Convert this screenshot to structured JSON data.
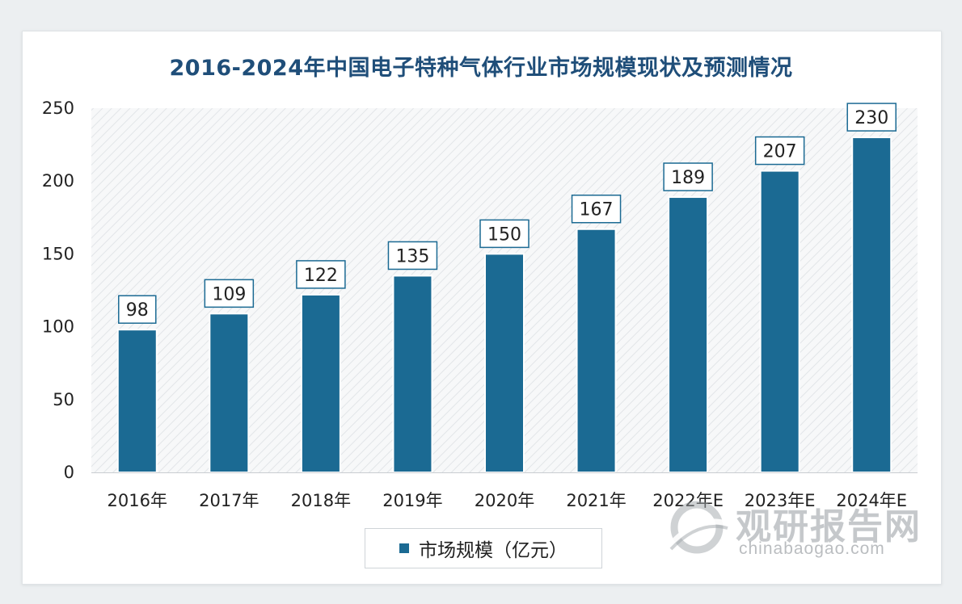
{
  "chart_data": {
    "type": "bar",
    "title": "2016-2024年中国电子特种气体行业市场规模现状及预测情况",
    "categories": [
      "2016年",
      "2017年",
      "2018年",
      "2019年",
      "2020年",
      "2021年",
      "2022年E",
      "2023年E",
      "2024年E"
    ],
    "series": [
      {
        "name": "市场规模（亿元）",
        "values": [
          98,
          109,
          122,
          135,
          150,
          167,
          189,
          207,
          230
        ]
      }
    ],
    "yticks": [
      0,
      50,
      100,
      150,
      200,
      250
    ],
    "ylim": [
      0,
      250
    ],
    "xlabel": "",
    "ylabel": "",
    "legend_position": "bottom",
    "bar_color": "#1b6a93",
    "grid": false
  },
  "watermark": {
    "name_cn": "观研报告网",
    "url": "chinabaogao.com",
    "logo_icon": "watermark-logo-icon"
  }
}
